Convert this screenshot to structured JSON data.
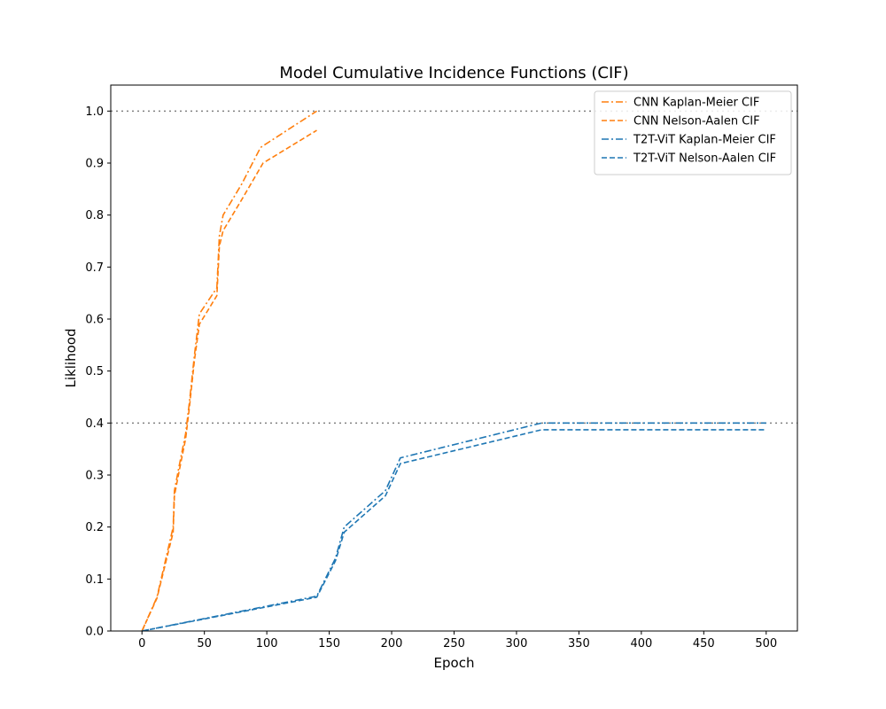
{
  "chart_data": {
    "type": "line",
    "title": "Model Cumulative Incidence Functions (CIF)",
    "xlabel": "Epoch",
    "ylabel": "Liklihood",
    "xlim": [
      -25,
      525
    ],
    "ylim": [
      0,
      1.05
    ],
    "xticks": [
      0,
      50,
      100,
      150,
      200,
      250,
      300,
      350,
      400,
      450,
      500
    ],
    "yticks": [
      0.0,
      0.1,
      0.2,
      0.3,
      0.4,
      0.5,
      0.6,
      0.7,
      0.8,
      0.9,
      1.0
    ],
    "grid": false,
    "legend_position": "top-right",
    "reference_lines": [
      {
        "y": 1.0,
        "style": "dotted",
        "color": "#808080"
      },
      {
        "y": 0.4,
        "style": "dotted",
        "color": "#808080"
      }
    ],
    "series": [
      {
        "name": "CNN Kaplan-Meier CIF",
        "color": "#ff7f0e",
        "dash": "dashdot",
        "x": [
          0,
          12,
          25,
          26,
          30,
          35,
          38,
          42,
          46,
          60,
          62,
          65,
          80,
          95,
          140
        ],
        "y": [
          0,
          0.065,
          0.2,
          0.27,
          0.32,
          0.38,
          0.44,
          0.53,
          0.61,
          0.66,
          0.76,
          0.8,
          0.86,
          0.93,
          1.0
        ]
      },
      {
        "name": "CNN Nelson-Aalen CIF",
        "color": "#ff7f0e",
        "dash": "dashed",
        "x": [
          0,
          12,
          25,
          26,
          30,
          35,
          38,
          42,
          46,
          60,
          62,
          65,
          80,
          97,
          140
        ],
        "y": [
          0,
          0.063,
          0.19,
          0.26,
          0.31,
          0.37,
          0.43,
          0.52,
          0.59,
          0.645,
          0.74,
          0.77,
          0.83,
          0.9,
          0.963
        ]
      },
      {
        "name": "T2T-ViT Kaplan-Meier CIF",
        "color": "#1f77b4",
        "dash": "dashdot",
        "x": [
          0,
          140,
          155,
          162,
          195,
          207,
          320,
          500
        ],
        "y": [
          0,
          0.067,
          0.14,
          0.2,
          0.27,
          0.333,
          0.4,
          0.4
        ]
      },
      {
        "name": "T2T-ViT Nelson-Aalen CIF",
        "color": "#1f77b4",
        "dash": "dashed",
        "x": [
          0,
          140,
          155,
          162,
          195,
          207,
          320,
          500
        ],
        "y": [
          0,
          0.065,
          0.135,
          0.19,
          0.26,
          0.322,
          0.387,
          0.387
        ]
      }
    ]
  }
}
